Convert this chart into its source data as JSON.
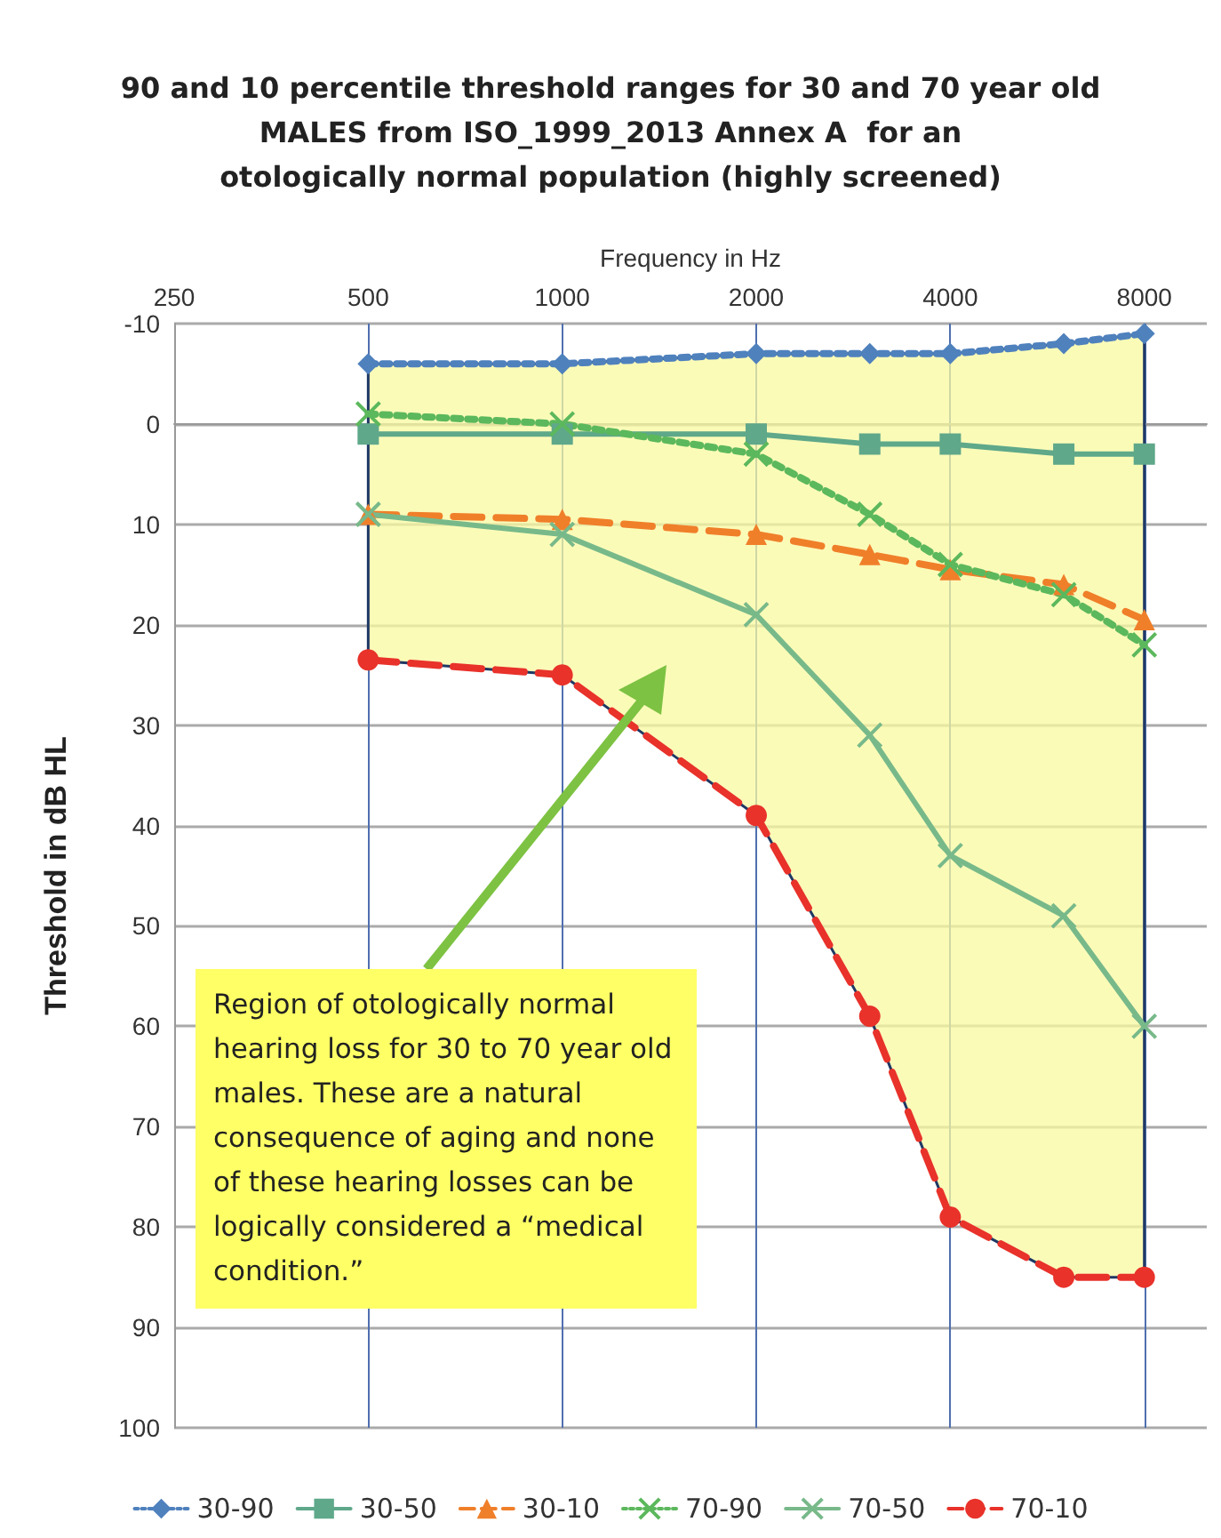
{
  "chart_data": {
    "type": "line",
    "title": "90 and 10 percentile threshold ranges for 30 and 70 year old\nMALES from ISO_1999_2013 Annex A  for an\notologically normal population (highly screened)",
    "xlabel": "Frequency in Hz",
    "ylabel": "Threshold in dB HL",
    "x": [
      500,
      1000,
      2000,
      3000,
      4000,
      6000,
      8000
    ],
    "log": "x",
    "xlim": [
      250,
      10000
    ],
    "xticks": [
      250,
      500,
      1000,
      2000,
      4000,
      8000
    ],
    "ylim": [
      100,
      -10
    ],
    "yticks": [
      -10,
      0,
      10,
      20,
      30,
      40,
      50,
      60,
      70,
      80,
      90,
      100
    ],
    "grid": true,
    "legend": "bottom",
    "series": [
      {
        "name": "30-90",
        "color": "#4f81bd",
        "marker": "diamond",
        "line_style": "dotted",
        "values": [
          -6,
          -6,
          -7,
          -7,
          -7,
          -8,
          -9
        ]
      },
      {
        "name": "30-50",
        "color": "#5fa88a",
        "marker": "square",
        "line_style": "solid",
        "values": [
          1,
          1,
          1,
          2,
          2,
          3,
          3
        ]
      },
      {
        "name": "30-10",
        "color": "#f07f2a",
        "marker": "triangle",
        "line_style": "dashed",
        "values": [
          9,
          9.5,
          11,
          13,
          14.5,
          16,
          19.5
        ]
      },
      {
        "name": "70-90",
        "color": "#5cb85c",
        "marker": "cross",
        "line_style": "dotted",
        "values": [
          -1,
          0,
          3,
          9,
          14,
          17,
          22
        ]
      },
      {
        "name": "70-50",
        "color": "#78b98a",
        "marker": "cross",
        "line_style": "solid",
        "values": [
          9,
          11,
          19,
          31,
          43,
          49,
          60
        ],
        "lower": [
          -6,
          -6,
          -7,
          -7,
          -7,
          -8,
          -9
        ],
        "upper": [
          23.5,
          25,
          39,
          59,
          79,
          85,
          85
        ]
      },
      {
        "name": "70-10",
        "color": "#e8322a",
        "marker": "circle",
        "line_style": "dashed",
        "values": [
          23.5,
          25,
          39,
          59,
          79,
          85,
          85
        ]
      }
    ],
    "annotations": [
      "Region of otologically  normal hearing loss for 30 to 70 year old males.   These  are a natural consequence  of aging and none of these hearing losses can be logically considered  a “medical condition.”"
    ]
  }
}
